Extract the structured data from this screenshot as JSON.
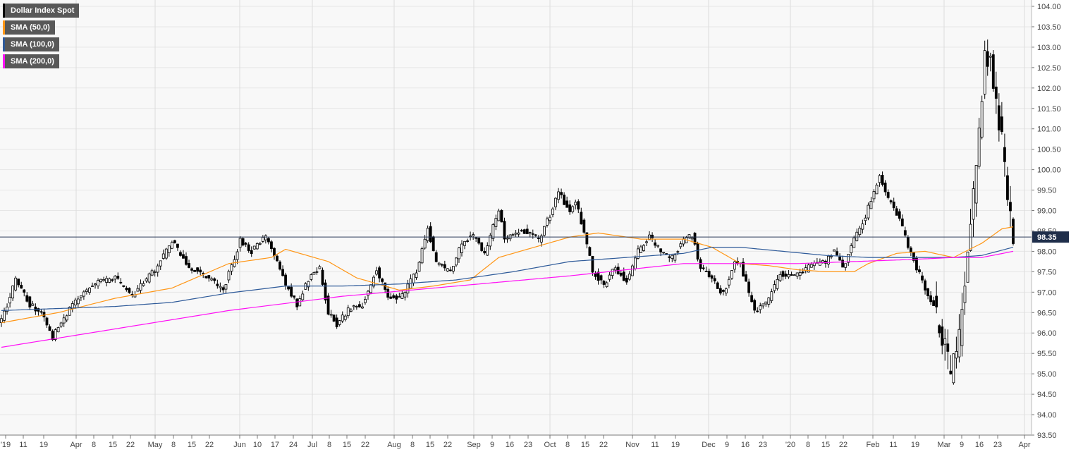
{
  "chart_data": {
    "type": "candlestick",
    "title": "Dollar Index Spot",
    "ylim": [
      93.5,
      104.0
    ],
    "y_ticks": [
      "104.00",
      "103.50",
      "103.00",
      "102.50",
      "102.00",
      "101.50",
      "101.00",
      "100.50",
      "100.00",
      "99.50",
      "99.00",
      "98.50",
      "98.00",
      "97.50",
      "97.00",
      "96.50",
      "96.00",
      "95.50",
      "95.00",
      "94.50",
      "94.00",
      "93.50"
    ],
    "x_ticks": [
      {
        "label": "'19",
        "sep": false
      },
      {
        "label": "11",
        "sep": false
      },
      {
        "label": "19",
        "sep": false
      },
      {
        "label": "Apr",
        "sep": true
      },
      {
        "label": "8",
        "sep": false
      },
      {
        "label": "15",
        "sep": false
      },
      {
        "label": "22",
        "sep": false
      },
      {
        "label": "May",
        "sep": true
      },
      {
        "label": "8",
        "sep": false
      },
      {
        "label": "15",
        "sep": false
      },
      {
        "label": "22",
        "sep": false
      },
      {
        "label": "Jun",
        "sep": true
      },
      {
        "label": "10",
        "sep": false
      },
      {
        "label": "17",
        "sep": false
      },
      {
        "label": "24",
        "sep": false
      },
      {
        "label": "Jul",
        "sep": true
      },
      {
        "label": "8",
        "sep": false
      },
      {
        "label": "15",
        "sep": false
      },
      {
        "label": "22",
        "sep": false
      },
      {
        "label": "Aug",
        "sep": true
      },
      {
        "label": "8",
        "sep": false
      },
      {
        "label": "15",
        "sep": false
      },
      {
        "label": "22",
        "sep": false
      },
      {
        "label": "Sep",
        "sep": true
      },
      {
        "label": "9",
        "sep": false
      },
      {
        "label": "16",
        "sep": false
      },
      {
        "label": "23",
        "sep": false
      },
      {
        "label": "Oct",
        "sep": true
      },
      {
        "label": "8",
        "sep": false
      },
      {
        "label": "15",
        "sep": false
      },
      {
        "label": "22",
        "sep": false
      },
      {
        "label": "Nov",
        "sep": true
      },
      {
        "label": "11",
        "sep": false
      },
      {
        "label": "19",
        "sep": false
      },
      {
        "label": "Dec",
        "sep": true
      },
      {
        "label": "9",
        "sep": false
      },
      {
        "label": "16",
        "sep": false
      },
      {
        "label": "23",
        "sep": false
      },
      {
        "label": "'20",
        "sep": true
      },
      {
        "label": "8",
        "sep": false
      },
      {
        "label": "15",
        "sep": false
      },
      {
        "label": "22",
        "sep": false
      },
      {
        "label": "Feb",
        "sep": true
      },
      {
        "label": "11",
        "sep": false
      },
      {
        "label": "19",
        "sep": false
      },
      {
        "label": "Mar",
        "sep": true
      },
      {
        "label": "9",
        "sep": false
      },
      {
        "label": "16",
        "sep": false
      },
      {
        "label": "23",
        "sep": false
      },
      {
        "label": "Apr",
        "sep": true
      }
    ],
    "current_price": 98.35,
    "current_price_label": "98.35",
    "candles": {
      "anchors": [
        [
          0,
          96.3
        ],
        [
          5,
          97.3
        ],
        [
          10,
          96.7
        ],
        [
          14,
          96.5
        ],
        [
          18,
          95.9
        ],
        [
          24,
          96.6
        ],
        [
          32,
          97.2
        ],
        [
          40,
          97.35
        ],
        [
          46,
          96.9
        ],
        [
          54,
          97.55
        ],
        [
          60,
          98.25
        ],
        [
          66,
          97.6
        ],
        [
          72,
          97.4
        ],
        [
          78,
          97.05
        ],
        [
          84,
          98.25
        ],
        [
          88,
          98.0
        ],
        [
          93,
          98.35
        ],
        [
          96,
          97.9
        ],
        [
          100,
          97.2
        ],
        [
          104,
          96.7
        ],
        [
          108,
          97.3
        ],
        [
          112,
          97.6
        ],
        [
          115,
          96.5
        ],
        [
          118,
          96.2
        ],
        [
          122,
          96.55
        ],
        [
          127,
          96.7
        ],
        [
          132,
          97.55
        ],
        [
          136,
          96.85
        ],
        [
          141,
          96.9
        ],
        [
          146,
          97.5
        ],
        [
          150,
          98.6
        ],
        [
          153,
          97.7
        ],
        [
          158,
          97.5
        ],
        [
          162,
          98.2
        ],
        [
          166,
          98.4
        ],
        [
          170,
          97.9
        ],
        [
          175,
          99.05
        ],
        [
          177,
          98.35
        ],
        [
          182,
          98.45
        ],
        [
          186,
          98.5
        ],
        [
          189,
          98.25
        ],
        [
          193,
          98.9
        ],
        [
          196,
          99.45
        ],
        [
          200,
          98.95
        ],
        [
          202,
          99.2
        ],
        [
          205,
          98.5
        ],
        [
          208,
          97.5
        ],
        [
          212,
          97.2
        ],
        [
          216,
          97.6
        ],
        [
          220,
          97.25
        ],
        [
          224,
          98.0
        ],
        [
          228,
          98.35
        ],
        [
          232,
          98.0
        ],
        [
          236,
          97.85
        ],
        [
          240,
          98.25
        ],
        [
          243,
          98.4
        ],
        [
          246,
          97.6
        ],
        [
          250,
          97.3
        ],
        [
          254,
          96.95
        ],
        [
          258,
          97.7
        ],
        [
          260,
          97.7
        ],
        [
          262,
          97.2
        ],
        [
          265,
          96.55
        ],
        [
          269,
          96.7
        ],
        [
          274,
          97.45
        ],
        [
          278,
          97.35
        ],
        [
          282,
          97.5
        ],
        [
          286,
          97.7
        ],
        [
          290,
          97.75
        ],
        [
          293,
          98.05
        ],
        [
          296,
          97.55
        ],
        [
          299,
          98.15
        ],
        [
          303,
          98.7
        ],
        [
          306,
          99.25
        ],
        [
          309,
          99.85
        ],
        [
          312,
          99.3
        ],
        [
          316,
          98.8
        ],
        [
          319,
          98.1
        ],
        [
          322,
          97.6
        ],
        [
          325,
          97.1
        ],
        [
          328,
          96.7
        ],
        [
          331,
          95.9
        ],
        [
          334,
          95.05
        ],
        [
          336,
          95.4
        ],
        [
          338,
          96.5
        ],
        [
          340,
          97.8
        ],
        [
          342,
          99.4
        ],
        [
          344,
          101.0
        ],
        [
          346,
          102.7
        ],
        [
          348,
          102.8
        ],
        [
          350,
          101.5
        ],
        [
          352,
          100.7
        ],
        [
          354,
          99.4
        ],
        [
          356,
          98.35
        ]
      ],
      "count": 357
    },
    "series": [
      {
        "name": "SMA (50,0)",
        "color": "#ff9616",
        "anchors": [
          [
            0,
            96.25
          ],
          [
            20,
            96.5
          ],
          [
            40,
            96.85
          ],
          [
            60,
            97.1
          ],
          [
            80,
            97.7
          ],
          [
            95,
            97.85
          ],
          [
            100,
            98.05
          ],
          [
            115,
            97.75
          ],
          [
            125,
            97.35
          ],
          [
            140,
            97.05
          ],
          [
            152,
            97.15
          ],
          [
            165,
            97.3
          ],
          [
            175,
            97.85
          ],
          [
            190,
            98.15
          ],
          [
            200,
            98.35
          ],
          [
            210,
            98.45
          ],
          [
            225,
            98.3
          ],
          [
            240,
            98.3
          ],
          [
            250,
            98.1
          ],
          [
            260,
            97.7
          ],
          [
            270,
            97.65
          ],
          [
            280,
            97.55
          ],
          [
            290,
            97.5
          ],
          [
            300,
            97.5
          ],
          [
            305,
            97.7
          ],
          [
            315,
            97.95
          ],
          [
            325,
            98.0
          ],
          [
            335,
            97.85
          ],
          [
            345,
            98.2
          ],
          [
            352,
            98.55
          ],
          [
            356,
            98.6
          ]
        ]
      },
      {
        "name": "SMA (100,0)",
        "color": "#2e5a99",
        "anchors": [
          [
            0,
            96.55
          ],
          [
            20,
            96.6
          ],
          [
            40,
            96.65
          ],
          [
            60,
            96.75
          ],
          [
            80,
            96.98
          ],
          [
            100,
            97.15
          ],
          [
            120,
            97.15
          ],
          [
            140,
            97.2
          ],
          [
            160,
            97.3
          ],
          [
            180,
            97.5
          ],
          [
            200,
            97.75
          ],
          [
            220,
            97.85
          ],
          [
            240,
            97.95
          ],
          [
            250,
            98.1
          ],
          [
            260,
            98.1
          ],
          [
            275,
            98.0
          ],
          [
            290,
            97.9
          ],
          [
            305,
            97.85
          ],
          [
            320,
            97.85
          ],
          [
            335,
            97.85
          ],
          [
            345,
            97.9
          ],
          [
            356,
            98.1
          ]
        ]
      },
      {
        "name": "SMA (200,0)",
        "color": "#ff0ff5",
        "anchors": [
          [
            0,
            95.65
          ],
          [
            40,
            96.1
          ],
          [
            80,
            96.55
          ],
          [
            120,
            96.9
          ],
          [
            160,
            97.15
          ],
          [
            200,
            97.4
          ],
          [
            240,
            97.7
          ],
          [
            260,
            97.7
          ],
          [
            280,
            97.7
          ],
          [
            300,
            97.75
          ],
          [
            320,
            97.8
          ],
          [
            335,
            97.85
          ],
          [
            345,
            97.85
          ],
          [
            356,
            98.0
          ]
        ]
      }
    ]
  },
  "legend": [
    {
      "label": "Dollar Index Spot",
      "color": "#000000"
    },
    {
      "label": "SMA (50,0)",
      "color": "#ff9616"
    },
    {
      "label": "SMA (100,0)",
      "color": "#2e5a99"
    },
    {
      "label": "SMA (200,0)",
      "color": "#ff0ff5"
    }
  ]
}
